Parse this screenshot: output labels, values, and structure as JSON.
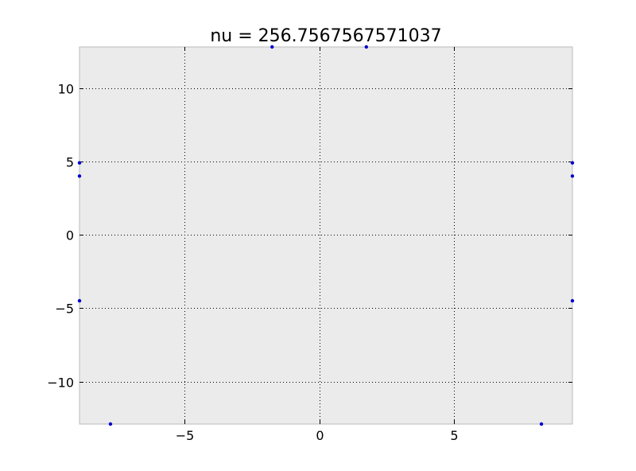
{
  "chart_data": {
    "type": "scatter",
    "title": "nu = 256.7567567571037",
    "xlabel": "",
    "ylabel": "",
    "xlim": [
      -8.9,
      9.4
    ],
    "ylim": [
      -12.9,
      12.8
    ],
    "xticks": [
      -5,
      0,
      5
    ],
    "yticks": [
      -10,
      -5,
      0,
      5,
      10
    ],
    "xtick_labels": [
      "−5",
      "0",
      "5"
    ],
    "ytick_labels": [
      "−10",
      "−5",
      "0",
      "5",
      "10"
    ],
    "grid": true,
    "marker_color": "#0000cc",
    "background_color": "#ebebeb",
    "grid_color": "#000000",
    "series": [
      {
        "x": [
          -1.75,
          1.75,
          -8.9,
          -8.9,
          9.4,
          9.4,
          -8.9,
          9.4,
          -7.75,
          8.25
        ],
        "y": [
          12.8,
          12.8,
          4.9,
          4.0,
          4.9,
          4.0,
          -4.5,
          -4.5,
          -12.9,
          -12.9
        ]
      }
    ]
  }
}
